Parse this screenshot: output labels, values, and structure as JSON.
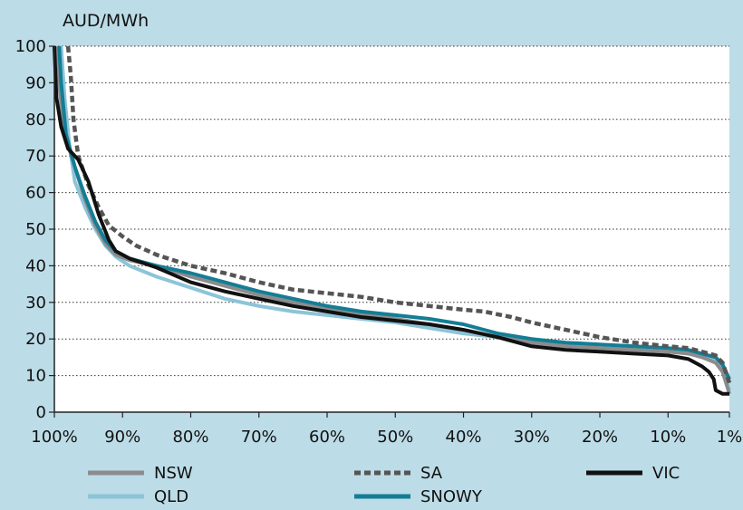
{
  "chart_data": {
    "type": "line",
    "ylabel": "AUD/MWh",
    "xlabel": "",
    "xlim": [
      100,
      1
    ],
    "ylim": [
      0,
      100
    ],
    "x_ticks": [
      "100%",
      "90%",
      "80%",
      "70%",
      "60%",
      "50%",
      "40%",
      "30%",
      "20%",
      "10%",
      "1%"
    ],
    "x_tick_values": [
      100,
      90,
      80,
      70,
      60,
      50,
      40,
      30,
      20,
      10,
      1
    ],
    "y_ticks": [
      0,
      10,
      20,
      30,
      40,
      50,
      60,
      70,
      80,
      90,
      100
    ],
    "grid": "horizontal dotted",
    "legend_position": "bottom",
    "series": [
      {
        "name": "NSW",
        "color": "#8c8c8c",
        "style": "solid",
        "points": [
          [
            99.5,
            100
          ],
          [
            99.2,
            88
          ],
          [
            98.5,
            76
          ],
          [
            97,
            67
          ],
          [
            95.5,
            58
          ],
          [
            94,
            51
          ],
          [
            92.5,
            46
          ],
          [
            91,
            43
          ],
          [
            89,
            41.5
          ],
          [
            85,
            40
          ],
          [
            80,
            37
          ],
          [
            75,
            34.5
          ],
          [
            70,
            32
          ],
          [
            65,
            30
          ],
          [
            60,
            28.5
          ],
          [
            55,
            27
          ],
          [
            50,
            25.5
          ],
          [
            45,
            24
          ],
          [
            40,
            22.5
          ],
          [
            35,
            20.5
          ],
          [
            30,
            19
          ],
          [
            25,
            18
          ],
          [
            20,
            17.5
          ],
          [
            15,
            17
          ],
          [
            10,
            16.5
          ],
          [
            7,
            16
          ],
          [
            5,
            15
          ],
          [
            3,
            13.5
          ],
          [
            2,
            11
          ],
          [
            1,
            5
          ]
        ]
      },
      {
        "name": "QLD",
        "color": "#8cc4d8",
        "style": "solid",
        "points": [
          [
            99,
            100
          ],
          [
            98.5,
            86
          ],
          [
            97.8,
            73
          ],
          [
            97,
            63
          ],
          [
            95.5,
            56
          ],
          [
            94,
            50
          ],
          [
            92.5,
            45.5
          ],
          [
            91,
            42.5
          ],
          [
            89,
            40
          ],
          [
            85,
            37
          ],
          [
            80,
            34
          ],
          [
            75,
            31
          ],
          [
            70,
            29
          ],
          [
            65,
            27.5
          ],
          [
            60,
            26.5
          ],
          [
            55,
            25.5
          ],
          [
            50,
            24.5
          ],
          [
            45,
            23
          ],
          [
            40,
            21.5
          ],
          [
            35,
            20.5
          ],
          [
            30,
            19.5
          ],
          [
            25,
            18.5
          ],
          [
            20,
            17.5
          ],
          [
            15,
            17
          ],
          [
            10,
            16.5
          ],
          [
            7,
            16
          ],
          [
            5,
            15.5
          ],
          [
            3,
            14.5
          ],
          [
            2,
            12
          ],
          [
            1,
            6
          ]
        ]
      },
      {
        "name": "SA",
        "color": "#555555",
        "style": "dashed",
        "points": [
          [
            98,
            100
          ],
          [
            97.6,
            92
          ],
          [
            97.2,
            80
          ],
          [
            96.5,
            70
          ],
          [
            95,
            62
          ],
          [
            93.5,
            56
          ],
          [
            92,
            51
          ],
          [
            90,
            48
          ],
          [
            88,
            45.5
          ],
          [
            85,
            43
          ],
          [
            80,
            40
          ],
          [
            75,
            38
          ],
          [
            70,
            35.5
          ],
          [
            65,
            33.5
          ],
          [
            60,
            32.5
          ],
          [
            55,
            31.5
          ],
          [
            50,
            30
          ],
          [
            45,
            29
          ],
          [
            40,
            28
          ],
          [
            37,
            27.5
          ],
          [
            33,
            26
          ],
          [
            30,
            24.5
          ],
          [
            25,
            22.5
          ],
          [
            20,
            20.5
          ],
          [
            15,
            19
          ],
          [
            10,
            18
          ],
          [
            7,
            17.5
          ],
          [
            5,
            16.5
          ],
          [
            3,
            15.5
          ],
          [
            2,
            13.5
          ],
          [
            1,
            8
          ]
        ]
      },
      {
        "name": "VIC",
        "color": "#111111",
        "style": "solid",
        "points": [
          [
            100,
            100
          ],
          [
            99.7,
            86
          ],
          [
            99,
            78
          ],
          [
            98,
            72
          ],
          [
            96.5,
            69
          ],
          [
            95,
            63
          ],
          [
            93.5,
            54
          ],
          [
            92,
            47
          ],
          [
            91,
            44
          ],
          [
            89,
            42
          ],
          [
            85,
            39.5
          ],
          [
            80,
            35.5
          ],
          [
            75,
            33
          ],
          [
            70,
            31
          ],
          [
            65,
            29
          ],
          [
            60,
            27.5
          ],
          [
            55,
            26
          ],
          [
            50,
            25
          ],
          [
            45,
            24
          ],
          [
            40,
            22.5
          ],
          [
            35,
            20.5
          ],
          [
            30,
            18
          ],
          [
            25,
            17
          ],
          [
            20,
            16.5
          ],
          [
            15,
            16
          ],
          [
            10,
            15.5
          ],
          [
            7,
            14.5
          ],
          [
            5,
            12.5
          ],
          [
            4,
            11
          ],
          [
            3.3,
            9
          ],
          [
            3,
            6
          ],
          [
            2,
            5
          ],
          [
            1,
            5
          ]
        ]
      },
      {
        "name": "SNOWY",
        "color": "#147d95",
        "style": "solid",
        "points": [
          [
            99.3,
            100
          ],
          [
            99,
            90
          ],
          [
            98.3,
            76
          ],
          [
            97,
            67
          ],
          [
            95.5,
            59
          ],
          [
            94,
            52
          ],
          [
            92.5,
            47
          ],
          [
            91,
            44
          ],
          [
            89,
            42
          ],
          [
            85,
            40
          ],
          [
            80,
            38
          ],
          [
            75,
            35.5
          ],
          [
            70,
            33
          ],
          [
            65,
            31
          ],
          [
            60,
            29
          ],
          [
            55,
            27.5
          ],
          [
            50,
            26.5
          ],
          [
            45,
            25.5
          ],
          [
            40,
            24
          ],
          [
            35,
            21.5
          ],
          [
            30,
            20
          ],
          [
            25,
            19
          ],
          [
            20,
            18.5
          ],
          [
            15,
            18
          ],
          [
            10,
            17.5
          ],
          [
            7,
            17
          ],
          [
            5,
            16
          ],
          [
            3,
            15
          ],
          [
            2,
            13
          ],
          [
            1,
            9
          ]
        ]
      }
    ]
  }
}
